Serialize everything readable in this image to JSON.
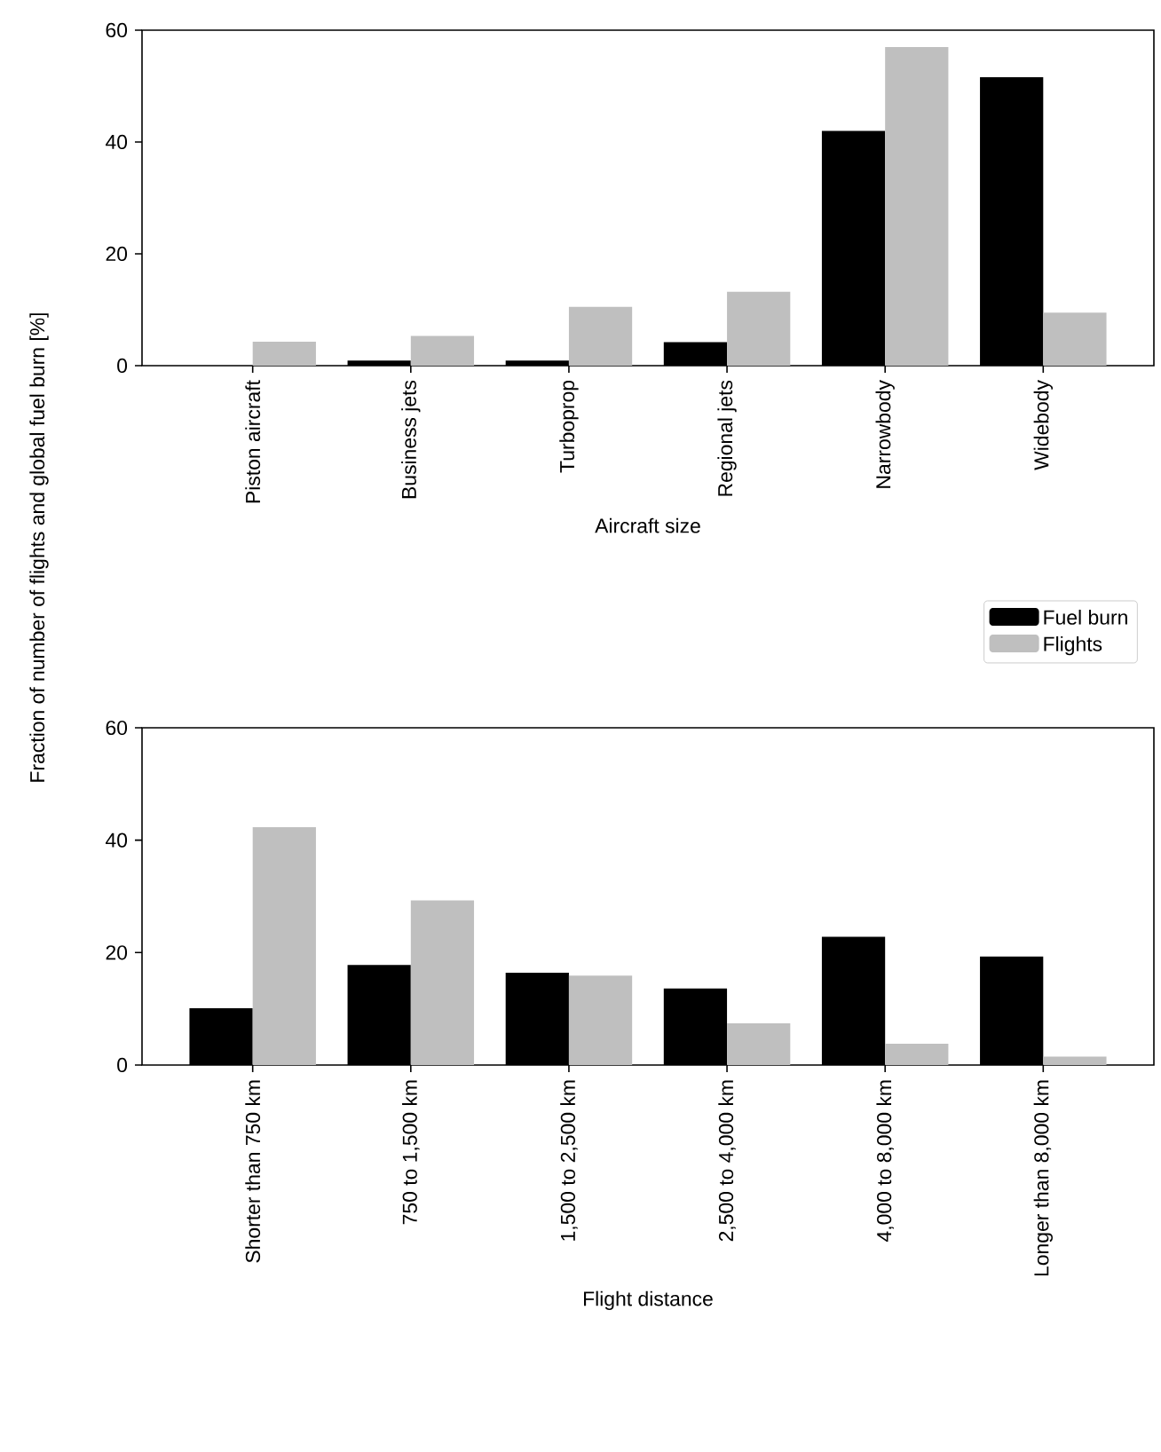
{
  "chart_data": [
    {
      "type": "bar",
      "xlabel": "Aircraft size",
      "ylabel": "Fraction of number of flights and global fuel burn [%]",
      "categories": [
        "Piston aircraft",
        "Business jets",
        "Turboprop",
        "Regional jets",
        "Narrowbody",
        "Widebody"
      ],
      "series": [
        {
          "name": "Fuel burn",
          "color": "#000000",
          "values": [
            0,
            0.9,
            0.9,
            4.2,
            42,
            51.6
          ]
        },
        {
          "name": "Flights",
          "color": "#bfbfbf",
          "values": [
            4.3,
            5.3,
            10.5,
            13.2,
            57,
            9.5
          ]
        }
      ],
      "ylim": [
        0,
        60
      ],
      "yticks": [
        0,
        20,
        40,
        60
      ],
      "legend": "bottom right"
    },
    {
      "type": "bar",
      "xlabel": "Flight distance",
      "categories": [
        "Shorter than 750 km",
        "750 to 1,500 km",
        "1,500 to 2,500 km",
        "2,500 to 4,000 km",
        "4,000 to 8,000 km",
        "Longer than 8,000 km"
      ],
      "series": [
        {
          "color": "#000000",
          "values": [
            10.1,
            17.8,
            16.4,
            13.6,
            22.8,
            19.3
          ]
        },
        {
          "color": "#bfbfbf",
          "values": [
            42.3,
            29.3,
            15.9,
            7.4,
            3.8,
            1.5
          ]
        }
      ],
      "ylim": [
        0,
        60
      ],
      "yticks": [
        0,
        20,
        40,
        60
      ]
    }
  ]
}
